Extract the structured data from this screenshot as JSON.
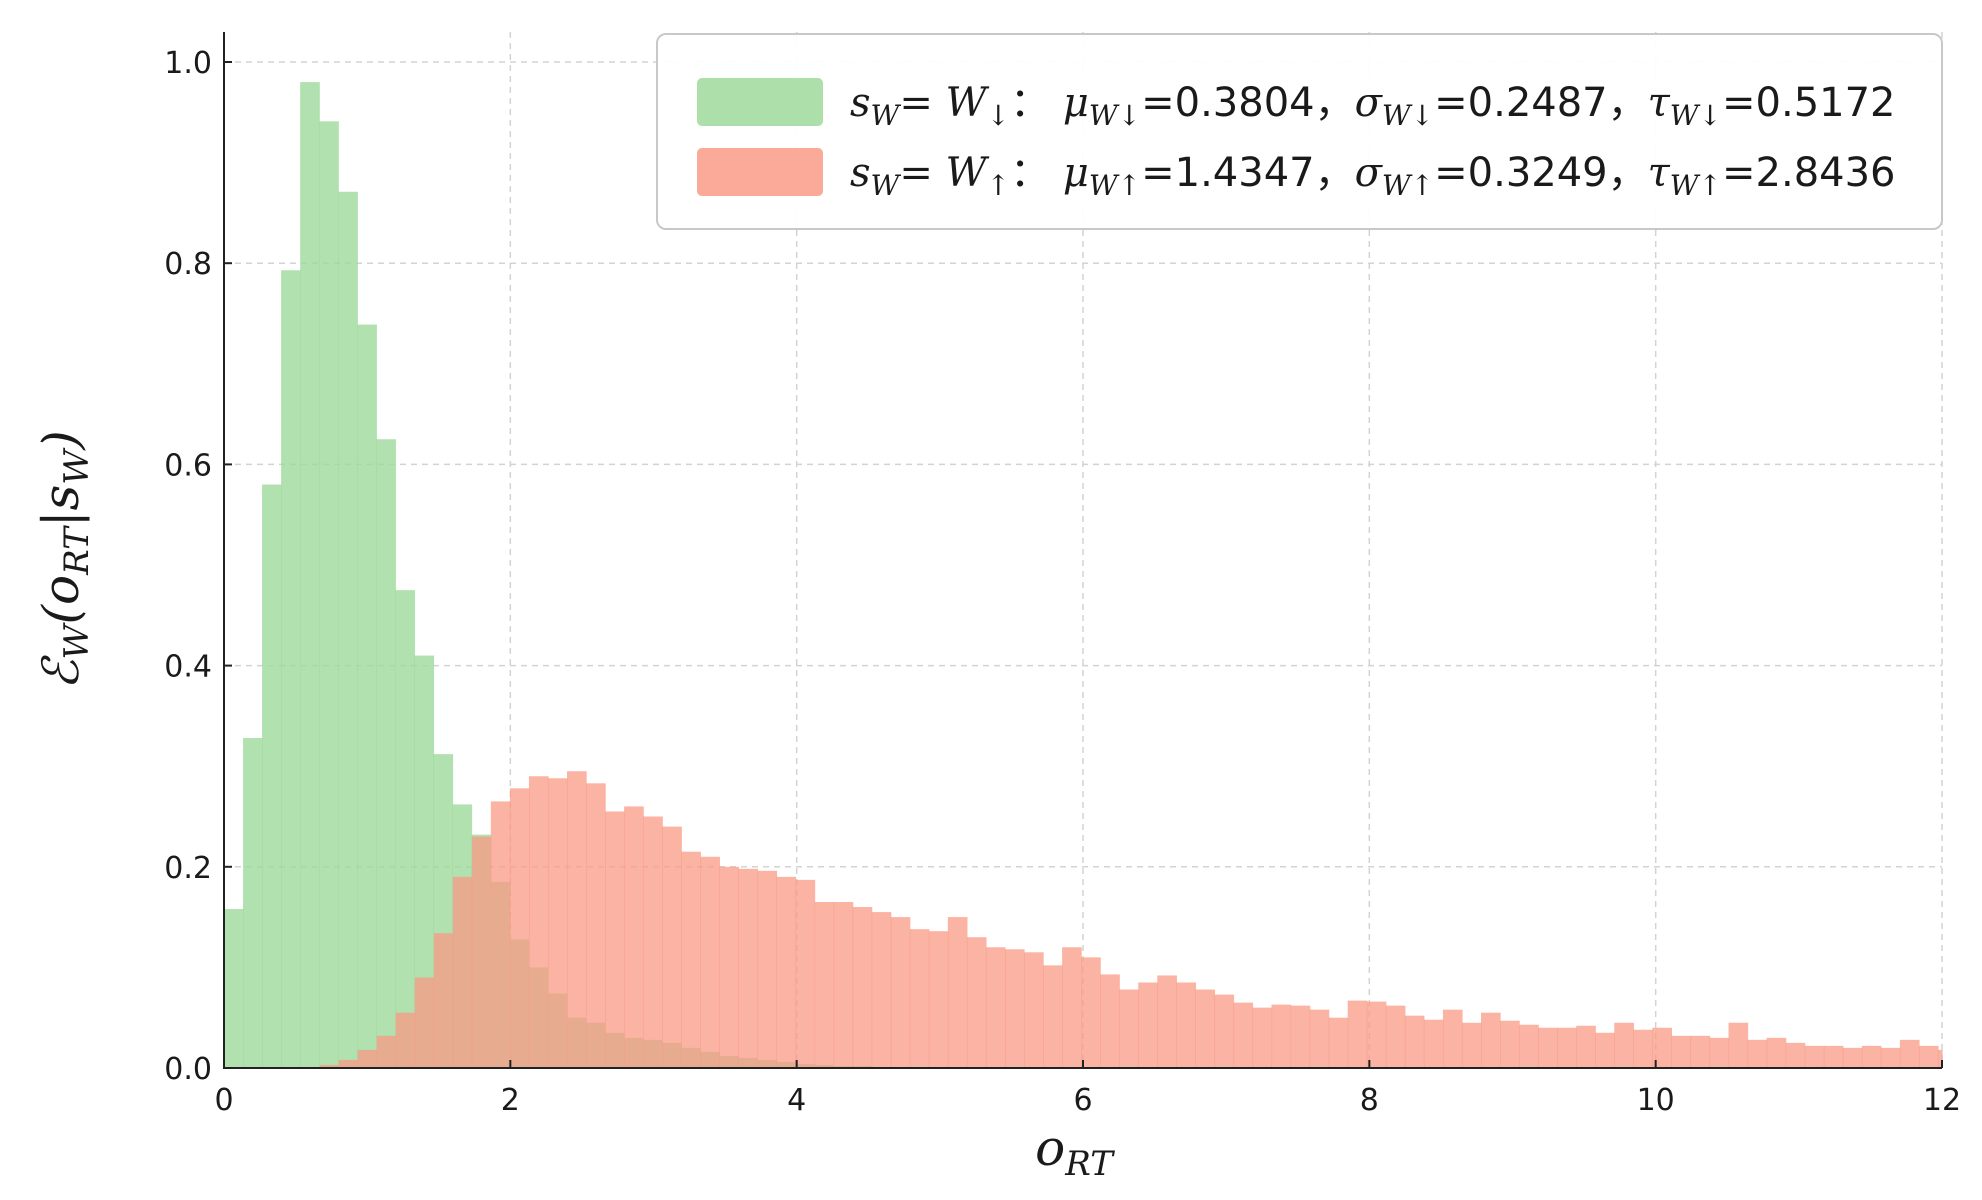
{
  "chart_data": {
    "type": "bar",
    "subtype": "histogram",
    "xlabel": "o_RT",
    "ylabel": "ℰ_W(o_RT|s_W)",
    "xlim": [
      0,
      12
    ],
    "ylim": [
      0,
      1.0
    ],
    "xticks": [
      0,
      2,
      4,
      6,
      8,
      10,
      12
    ],
    "yticks": [
      0.0,
      0.2,
      0.4,
      0.6,
      0.8,
      1.0
    ],
    "xtick_labels": [
      "0",
      "2",
      "4",
      "6",
      "8",
      "10",
      "12"
    ],
    "ytick_labels": [
      "0.0",
      "0.2",
      "0.4",
      "0.6",
      "0.8",
      "1.0"
    ],
    "grid": true,
    "legend_position": "top-right",
    "bin_width": 0.133,
    "series": [
      {
        "legend": {
          "s": "s",
          "sub": "W",
          "state": "W",
          "arrow": "↓",
          "mu": "0.3804",
          "sigma": "0.2487",
          "tau": "0.5172"
        },
        "color": "#9dd99a",
        "bin_start": 0.0,
        "values": [
          0.158,
          0.328,
          0.58,
          0.793,
          0.98,
          0.941,
          0.871,
          0.739,
          0.625,
          0.475,
          0.41,
          0.312,
          0.262,
          0.232,
          0.185,
          0.128,
          0.1,
          0.074,
          0.05,
          0.045,
          0.035,
          0.03,
          0.028,
          0.025,
          0.02,
          0.016,
          0.012,
          0.01,
          0.008,
          0.006,
          0.004,
          0.003,
          0.002,
          0.002,
          0.001,
          0.001,
          0.001
        ]
      },
      {
        "legend": {
          "s": "s",
          "sub": "W",
          "state": "W",
          "arrow": "↑",
          "mu": "1.4347",
          "sigma": "0.3249",
          "tau": "2.8436"
        },
        "color": "#fa9a86",
        "bin_start": 0.667,
        "values": [
          0.003,
          0.008,
          0.018,
          0.032,
          0.055,
          0.09,
          0.134,
          0.19,
          0.23,
          0.265,
          0.278,
          0.29,
          0.288,
          0.295,
          0.283,
          0.255,
          0.26,
          0.25,
          0.24,
          0.215,
          0.21,
          0.2,
          0.198,
          0.196,
          0.19,
          0.187,
          0.165,
          0.165,
          0.16,
          0.155,
          0.15,
          0.138,
          0.136,
          0.15,
          0.13,
          0.12,
          0.118,
          0.115,
          0.102,
          0.12,
          0.11,
          0.093,
          0.078,
          0.085,
          0.092,
          0.085,
          0.078,
          0.073,
          0.065,
          0.06,
          0.063,
          0.062,
          0.058,
          0.05,
          0.067,
          0.066,
          0.062,
          0.052,
          0.048,
          0.058,
          0.045,
          0.055,
          0.047,
          0.043,
          0.04,
          0.04,
          0.042,
          0.035,
          0.045,
          0.038,
          0.04,
          0.032,
          0.032,
          0.03,
          0.045,
          0.028,
          0.03,
          0.025,
          0.022,
          0.022,
          0.02,
          0.022,
          0.02,
          0.028,
          0.022,
          0.018,
          0.022,
          0.016,
          0.018,
          0.015,
          0.015,
          0.018,
          0.014,
          0.016,
          0.012,
          0.014,
          0.015,
          0.012,
          0.013,
          0.012,
          0.012,
          0.012,
          0.01,
          0.008,
          0.008,
          0.008,
          0.007,
          0.006,
          0.006,
          0.005,
          0.006,
          0.006,
          0.005,
          0.006,
          0.005,
          0.004,
          0.004,
          0.003
        ]
      }
    ]
  }
}
